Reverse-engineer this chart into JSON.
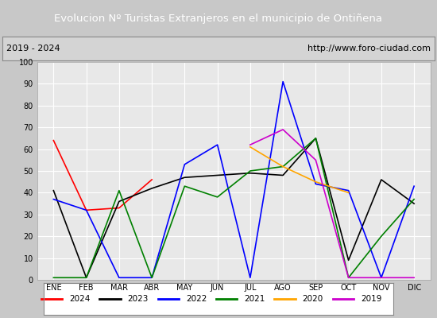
{
  "title": "Evolucion Nº Turistas Extranjeros en el municipio de Ontiñena",
  "subtitle_left": "2019 - 2024",
  "subtitle_right": "http://www.foro-ciudad.com",
  "months": [
    "ENE",
    "FEB",
    "MAR",
    "ABR",
    "MAY",
    "JUN",
    "JUL",
    "AGO",
    "SEP",
    "OCT",
    "NOV",
    "DIC"
  ],
  "series": {
    "2024": {
      "color": "#ff0000",
      "data": [
        64,
        32,
        33,
        46,
        null,
        null,
        null,
        null,
        null,
        null,
        null,
        null
      ]
    },
    "2023": {
      "color": "#000000",
      "data": [
        41,
        1,
        36,
        42,
        47,
        48,
        49,
        48,
        65,
        9,
        46,
        35
      ]
    },
    "2022": {
      "color": "#0000ff",
      "data": [
        37,
        32,
        1,
        1,
        53,
        62,
        1,
        91,
        44,
        41,
        1,
        43
      ]
    },
    "2021": {
      "color": "#008000",
      "data": [
        1,
        1,
        41,
        1,
        43,
        38,
        50,
        52,
        65,
        1,
        20,
        37
      ]
    },
    "2020": {
      "color": "#ffa500",
      "data": [
        null,
        null,
        null,
        null,
        null,
        null,
        61,
        52,
        45,
        40,
        null,
        null
      ]
    },
    "2019": {
      "color": "#cc00cc",
      "data": [
        null,
        null,
        null,
        null,
        null,
        null,
        62,
        69,
        55,
        1,
        1,
        1
      ]
    }
  },
  "ylim": [
    0,
    100
  ],
  "yticks": [
    0,
    10,
    20,
    30,
    40,
    50,
    60,
    70,
    80,
    90,
    100
  ],
  "title_bg_color": "#4a86c8",
  "subtitle_bg_color": "#d4d4d4",
  "plot_bg_color": "#e8e8e8",
  "grid_color": "#ffffff",
  "fig_bg_color": "#c8c8c8",
  "legend_items": [
    {
      "label": "2024",
      "color": "#ff0000"
    },
    {
      "label": "2023",
      "color": "#000000"
    },
    {
      "label": "2022",
      "color": "#0000ff"
    },
    {
      "label": "2021",
      "color": "#008000"
    },
    {
      "label": "2020",
      "color": "#ffa500"
    },
    {
      "label": "2019",
      "color": "#cc00cc"
    }
  ]
}
